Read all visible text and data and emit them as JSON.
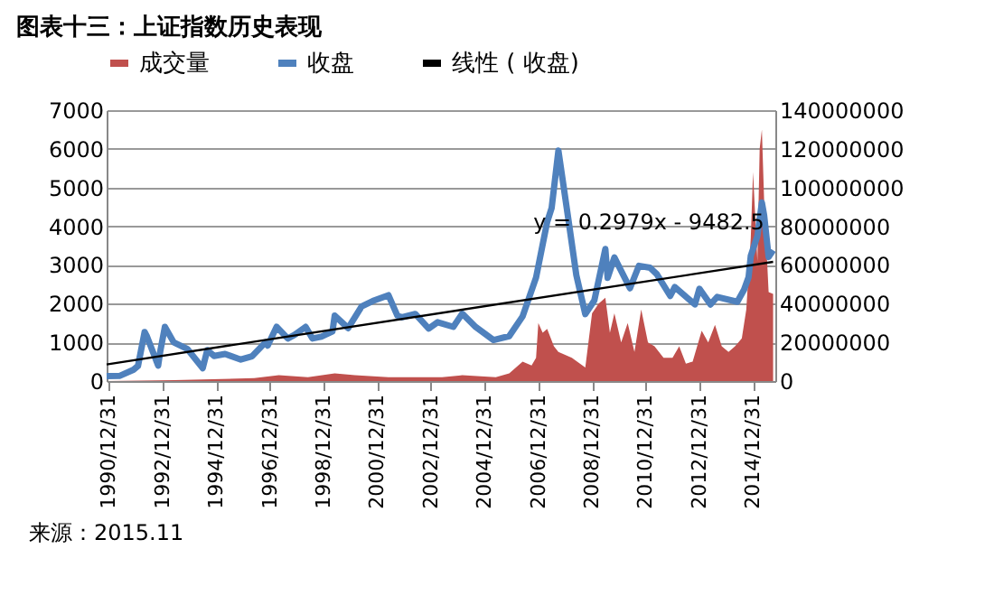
{
  "chart_data": {
    "type": "line",
    "title": "图表十三：上证指数历史表现",
    "legend": "top",
    "grid": "y",
    "xlim": [
      "1990-12-01",
      "2015-10-31"
    ],
    "xticks": [
      {
        "value": "1990-12-31",
        "label": "1990/12/31"
      },
      {
        "value": "1992-12-31",
        "label": "1992/12/31"
      },
      {
        "value": "1994-12-31",
        "label": "1994/12/31"
      },
      {
        "value": "1996-12-31",
        "label": "1996/12/31"
      },
      {
        "value": "1998-12-31",
        "label": "1998/12/31"
      },
      {
        "value": "2000-12-31",
        "label": "2000/12/31"
      },
      {
        "value": "2002-12-31",
        "label": "2002/12/31"
      },
      {
        "value": "2004-12-31",
        "label": "2004/12/31"
      },
      {
        "value": "2006-12-31",
        "label": "2006/12/31"
      },
      {
        "value": "2008-12-31",
        "label": "2008/12/31"
      },
      {
        "value": "2010-12-31",
        "label": "2010/12/31"
      },
      {
        "value": "2012-12-31",
        "label": "2012/12/31"
      },
      {
        "value": "2014-12-31",
        "label": "2014/12/31"
      }
    ],
    "ylim": [
      0,
      7000
    ],
    "yticks": [
      0,
      1000,
      2000,
      3000,
      4000,
      5000,
      6000,
      7000
    ],
    "y2lim": [
      0,
      140000000
    ],
    "y2ticks": [
      0,
      20000000,
      40000000,
      60000000,
      80000000,
      100000000,
      120000000,
      140000000
    ],
    "series": [
      {
        "name": "成交量",
        "type": "area",
        "axis": "y2",
        "color": "#c0504d",
        "x": [
          "1990-12",
          "1993-06",
          "1996-06",
          "1997-05",
          "1998-06",
          "1999-06",
          "2000-03",
          "2001-06",
          "2003-06",
          "2004-03",
          "2005-06",
          "2005-12",
          "2006-06",
          "2006-10",
          "2006-12",
          "2007-01",
          "2007-03",
          "2007-05",
          "2007-08",
          "2007-10",
          "2008-04",
          "2008-10",
          "2009-01",
          "2009-04",
          "2009-07",
          "2009-09",
          "2009-11",
          "2010-02",
          "2010-05",
          "2010-08",
          "2010-11",
          "2011-02",
          "2011-05",
          "2011-09",
          "2012-01",
          "2012-04",
          "2012-07",
          "2012-10",
          "2013-02",
          "2013-05",
          "2013-08",
          "2013-11",
          "2014-02",
          "2014-05",
          "2014-08",
          "2014-10",
          "2014-12",
          "2015-01",
          "2015-03",
          "2015-04",
          "2015-05",
          "2015-06",
          "2015-08",
          "2015-10"
        ],
        "values": [
          0,
          500000,
          1500000,
          3000000,
          2000000,
          4000000,
          3000000,
          2000000,
          2000000,
          3000000,
          2000000,
          4000000,
          10000000,
          8000000,
          12000000,
          30000000,
          25000000,
          27000000,
          18000000,
          15000000,
          12000000,
          7000000,
          35000000,
          40000000,
          43000000,
          25000000,
          35000000,
          20000000,
          30000000,
          15000000,
          37000000,
          20000000,
          18000000,
          12000000,
          12000000,
          18000000,
          9000000,
          10000000,
          26000000,
          20000000,
          29000000,
          18000000,
          15000000,
          18000000,
          22000000,
          37000000,
          74000000,
          108000000,
          62000000,
          120000000,
          130000000,
          93000000,
          46000000,
          45000000
        ]
      },
      {
        "name": "收盘",
        "color": "#4f81bd",
        "x": [
          "1990-12",
          "1991-06",
          "1991-12",
          "1992-02",
          "1992-05",
          "1992-06",
          "1992-11",
          "1992-12",
          "1993-02",
          "1993-06",
          "1993-12",
          "1994-07",
          "1994-09",
          "1994-12",
          "1995-05",
          "1995-12",
          "1996-05",
          "1996-11",
          "1996-12",
          "1997-04",
          "1997-09",
          "1997-12",
          "1998-05",
          "1998-08",
          "1998-12",
          "1999-05",
          "1999-06",
          "1999-12",
          "2000-06",
          "2000-11",
          "2001-06",
          "2001-10",
          "2001-12",
          "2002-06",
          "2002-12",
          "2003-04",
          "2003-11",
          "2004-03",
          "2004-09",
          "2005-05",
          "2005-12",
          "2006-06",
          "2006-12",
          "2007-05",
          "2007-07",
          "2007-10",
          "2008-02",
          "2008-06",
          "2008-10",
          "2009-02",
          "2009-07",
          "2009-08",
          "2009-11",
          "2010-06",
          "2010-10",
          "2011-03",
          "2011-06",
          "2011-12",
          "2012-02",
          "2012-11",
          "2013-01",
          "2013-06",
          "2013-09",
          "2014-06",
          "2014-09",
          "2014-11",
          "2014-12",
          "2015-03",
          "2015-05",
          "2015-06",
          "2015-08",
          "2015-10"
        ],
        "values": [
          128,
          137,
          293,
          390,
          1266,
          1157,
          400,
          780,
          1400,
          1000,
          833,
          333,
          800,
          648,
          700,
          555,
          640,
          1000,
          917,
          1400,
          1100,
          1194,
          1400,
          1100,
          1147,
          1280,
          1690,
          1367,
          1928,
          2070,
          2218,
          1690,
          1646,
          1733,
          1357,
          1520,
          1400,
          1742,
          1396,
          1060,
          1161,
          1672,
          2675,
          4110,
          4471,
          5955,
          4348,
          2736,
          1729,
          2082,
          3412,
          2667,
          3195,
          2398,
          2979,
          2928,
          2762,
          2199,
          2428,
          1980,
          2385,
          1979,
          2175,
          2048,
          2364,
          2683,
          3234,
          3748,
          4612,
          4277,
          3205,
          3382
        ]
      },
      {
        "name": "线性 (  收盘)",
        "color": "#000000",
        "x": [
          "1990-12",
          "2015-10"
        ],
        "values": [
          430,
          3080
        ]
      }
    ],
    "annotations": [
      "y = 0.2979x - 9482.5",
      "来源：2015.11"
    ]
  }
}
